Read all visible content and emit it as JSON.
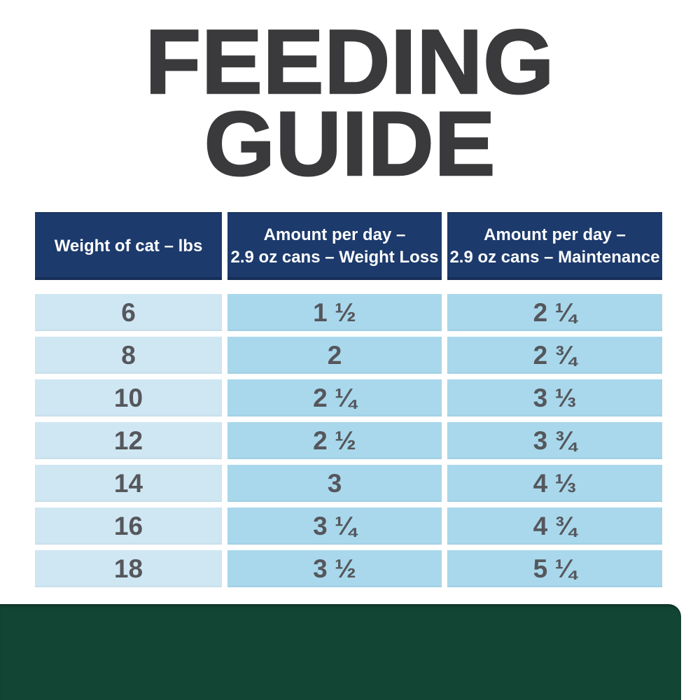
{
  "title": {
    "line1": "FEEDING",
    "line2": "GUIDE"
  },
  "table": {
    "headers": [
      {
        "lines": [
          "Weight of cat – lbs"
        ]
      },
      {
        "lines": [
          "Amount per day –",
          "2.9 oz cans – Weight Loss"
        ]
      },
      {
        "lines": [
          "Amount per day –",
          "2.9 oz cans – Maintenance"
        ]
      }
    ],
    "rows": [
      {
        "weight": "6",
        "weight_loss": "1 ½",
        "maintenance": "2 ¼"
      },
      {
        "weight": "8",
        "weight_loss": "2",
        "maintenance": "2 ¾"
      },
      {
        "weight": "10",
        "weight_loss": "2 ¼",
        "maintenance": "3 ⅓"
      },
      {
        "weight": "12",
        "weight_loss": "2 ½",
        "maintenance": "3 ¾"
      },
      {
        "weight": "14",
        "weight_loss": "3",
        "maintenance": "4 ⅓"
      },
      {
        "weight": "16",
        "weight_loss": "3 ¼",
        "maintenance": "4 ¾"
      },
      {
        "weight": "18",
        "weight_loss": "3 ½",
        "maintenance": "5 ¼"
      }
    ]
  },
  "chart_data": {
    "type": "table",
    "title": "FEEDING GUIDE",
    "columns": [
      "Weight of cat – lbs",
      "Amount per day – 2.9 oz cans – Weight Loss",
      "Amount per day – 2.9 oz cans – Maintenance"
    ],
    "rows": [
      [
        "6",
        "1 ½",
        "2 ¼"
      ],
      [
        "8",
        "2",
        "2 ¾"
      ],
      [
        "10",
        "2 ¼",
        "3 ⅓"
      ],
      [
        "12",
        "2 ½",
        "3 ¾"
      ],
      [
        "14",
        "3",
        "4 ⅓"
      ],
      [
        "16",
        "3 ¼",
        "4 ¾"
      ],
      [
        "18",
        "3 ½",
        "5 ¼"
      ]
    ],
    "weights_lbs": [
      6,
      8,
      10,
      12,
      14,
      16,
      18
    ],
    "weight_loss_cans_per_day": [
      1.5,
      2,
      2.25,
      2.5,
      3,
      3.25,
      3.5
    ],
    "maintenance_cans_per_day": [
      2.25,
      2.75,
      3.33,
      3.75,
      4.33,
      4.75,
      5.25
    ]
  },
  "colors": {
    "page_background": "#ffffff",
    "title_charcoal": "#3a3a3c",
    "header_navy": "#1c3a6c",
    "row_light_blue": "#cfe7f3",
    "row_medium_blue": "#a9d8ec",
    "cell_text_gray": "#55575c",
    "footer_green": "#134534"
  }
}
